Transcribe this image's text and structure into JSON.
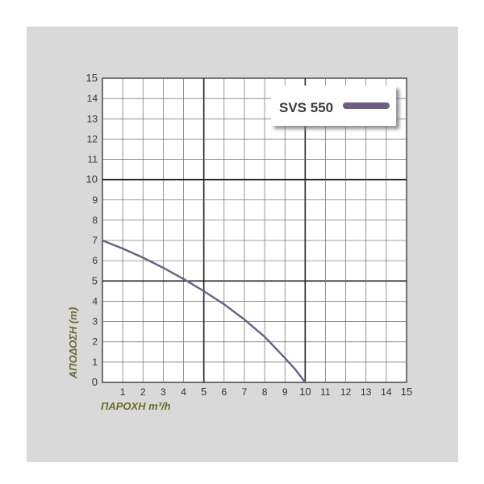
{
  "chart_data": {
    "type": "line",
    "xlabel": "ΠΑΡΟΧΗ m³/h",
    "ylabel": "ΑΠΟΔΟΣΗ (m)",
    "xlim": [
      0,
      15
    ],
    "ylim": [
      0,
      15
    ],
    "xticks": [
      "1",
      "2",
      "3",
      "4",
      "5",
      "6",
      "7",
      "8",
      "9",
      "10",
      "11",
      "12",
      "13",
      "14",
      "15"
    ],
    "yticks": [
      "0",
      "1",
      "2",
      "3",
      "4",
      "5",
      "6",
      "7",
      "8",
      "9",
      "10",
      "11",
      "12",
      "13",
      "14",
      "15"
    ],
    "grid": true,
    "legend_position": "top-right",
    "series": [
      {
        "name": "SVS 550",
        "color": "#6e5f80",
        "x": [
          0,
          1,
          2,
          3,
          4,
          5,
          6,
          7,
          8,
          9,
          9.5,
          10
        ],
        "y": [
          7,
          6.6,
          6.15,
          5.65,
          5.1,
          4.5,
          3.85,
          3.1,
          2.25,
          1.2,
          0.65,
          0
        ]
      }
    ],
    "axis_title_color": "#6b6a2e"
  }
}
